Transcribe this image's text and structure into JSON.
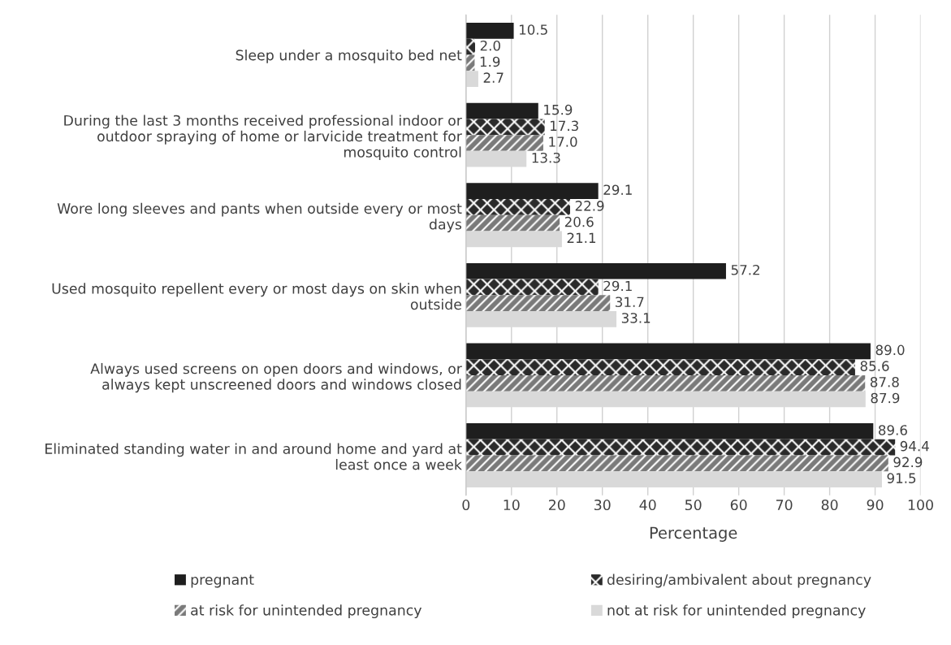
{
  "chart_data": {
    "type": "bar",
    "orientation": "horizontal",
    "xlabel": "Percentage",
    "categories": [
      "Sleep under a mosquito bed net",
      "During the last 3 months received professional indoor or\noutdoor spraying of home or larvicide treatment for\nmosquito control",
      "Wore long sleeves and pants when outside every or most\ndays",
      "Used mosquito repellent every or most days on skin when\noutside",
      "Always used screens on open doors and windows, or\nalways kept unscreened doors and windows closed",
      "Eliminated standing water in and around home and yard at\nleast once a week"
    ],
    "series": [
      {
        "name": "pregnant",
        "color": "#1e1e1e",
        "values": [
          10.5,
          15.9,
          29.1,
          57.2,
          89.0,
          89.6
        ],
        "value_labels": [
          "10.5",
          "15.9",
          "29.1",
          "57.2",
          "89.0",
          "89.6"
        ]
      },
      {
        "name": "desiring/ambivalent about pregnancy",
        "color": "#2a2a2a",
        "values": [
          2.0,
          17.3,
          22.9,
          29.1,
          85.6,
          94.4
        ],
        "value_labels": [
          "2.0",
          "17.3",
          "22.9",
          "29.1",
          "85.6",
          "94.4"
        ]
      },
      {
        "name": "at risk for unintended pregnancy",
        "color": "#7a7a7a",
        "values": [
          1.9,
          17.0,
          20.6,
          31.7,
          87.8,
          92.9
        ],
        "value_labels": [
          "1.9",
          "17.0",
          "20.6",
          "31.7",
          "87.8",
          "92.9"
        ]
      },
      {
        "name": "not at risk for unintended pregnancy",
        "color": "#d9d9d9",
        "values": [
          2.7,
          13.3,
          21.1,
          33.1,
          87.9,
          91.5
        ],
        "value_labels": [
          "2.7",
          "13.3",
          "21.1",
          "33.1",
          "87.9",
          "91.5"
        ]
      }
    ],
    "xlim": [
      0,
      100
    ],
    "xticks": [
      0,
      10,
      20,
      30,
      40,
      50,
      60,
      70,
      80,
      90,
      100
    ],
    "grid": "x",
    "legend": "bottom"
  }
}
